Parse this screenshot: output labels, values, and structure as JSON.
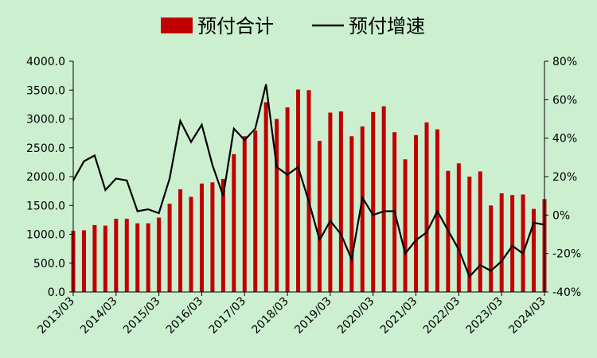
{
  "chart_data": {
    "type": "bar+line",
    "background": "#CCEFD0",
    "grid": false,
    "legend_position": "top-center",
    "x": [
      "2013/03",
      "2013/06",
      "2013/09",
      "2013/12",
      "2014/03",
      "2014/06",
      "2014/09",
      "2014/12",
      "2015/03",
      "2015/06",
      "2015/09",
      "2015/12",
      "2016/03",
      "2016/06",
      "2016/09",
      "2016/12",
      "2017/03",
      "2017/06",
      "2017/09",
      "2017/12",
      "2018/03",
      "2018/06",
      "2018/09",
      "2018/12",
      "2019/03",
      "2019/06",
      "2019/09",
      "2019/12",
      "2020/03",
      "2020/06",
      "2020/09",
      "2020/12",
      "2021/03",
      "2021/06",
      "2021/09",
      "2021/12",
      "2022/03",
      "2022/06",
      "2022/09",
      "2022/12",
      "2023/03",
      "2023/06",
      "2023/09",
      "2023/12",
      "2024/03"
    ],
    "x_tick_labels": [
      "2013/03",
      "2014/03",
      "2015/03",
      "2016/03",
      "2017/03",
      "2018/03",
      "2019/03",
      "2020/03",
      "2021/03",
      "2022/03",
      "2023/03",
      "2024/03"
    ],
    "series": [
      {
        "name": "预付合计",
        "kind": "bar",
        "axis": "left",
        "color": "#C00000",
        "values": [
          1060,
          1070,
          1160,
          1150,
          1270,
          1270,
          1190,
          1190,
          1290,
          1530,
          1780,
          1650,
          1880,
          1900,
          1960,
          2390,
          2700,
          2800,
          3290,
          3000,
          3200,
          3510,
          3500,
          2620,
          3110,
          3130,
          2700,
          2870,
          3120,
          3220,
          2770,
          2300,
          2720,
          2940,
          2820,
          2100,
          2230,
          2000,
          2090,
          1500,
          1710,
          1680,
          1690,
          1440,
          1610
        ]
      },
      {
        "name": "预付增速",
        "kind": "line",
        "axis": "right",
        "color": "#000000",
        "values": [
          18,
          28,
          31,
          13,
          19,
          18,
          2,
          3,
          1,
          19,
          49,
          38,
          47,
          26,
          10,
          45,
          39,
          45,
          68,
          25,
          21,
          25,
          7,
          -13,
          -3,
          -10,
          -23,
          9,
          0,
          2,
          2,
          -20,
          -13,
          -9,
          2,
          -8,
          -18,
          -32,
          -26,
          -29,
          -24,
          -16,
          -20,
          -4,
          -5
        ]
      }
    ],
    "y_left": {
      "min": 0,
      "max": 4000,
      "ticks": [
        "0.0",
        "500.0",
        "1000.0",
        "1500.0",
        "2000.0",
        "2500.0",
        "3000.0",
        "3500.0",
        "4000.0"
      ]
    },
    "y_right": {
      "min": -40,
      "max": 80,
      "ticks": [
        "-40%",
        "-20%",
        "0%",
        "20%",
        "40%",
        "60%",
        "80%"
      ]
    }
  }
}
